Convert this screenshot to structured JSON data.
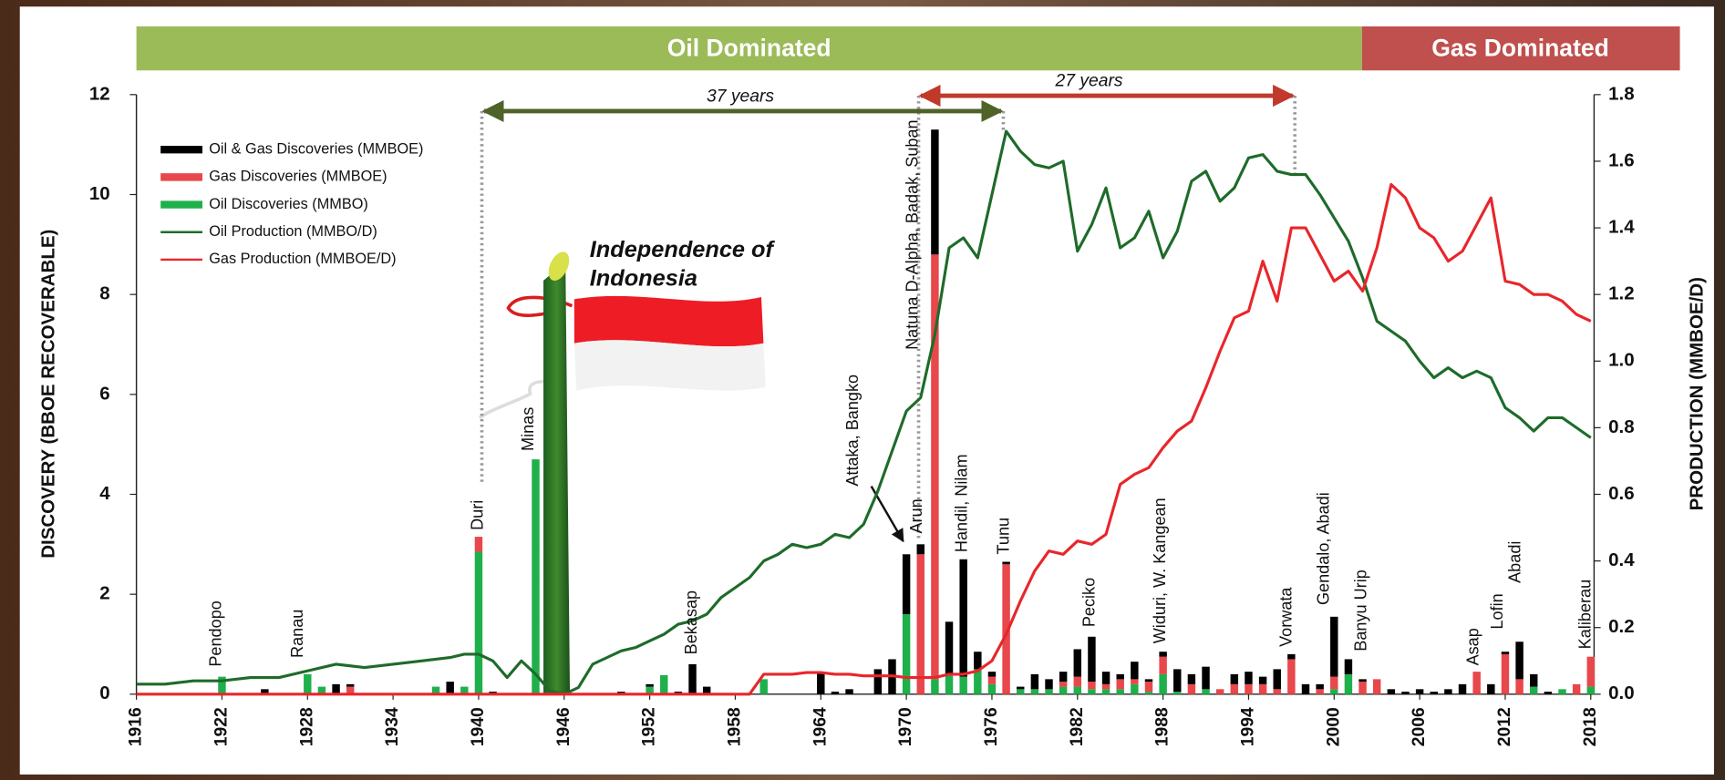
{
  "banners": [
    "Oil Dominated",
    "Gas Dominated"
  ],
  "periods": [
    "37 years",
    "27 years"
  ],
  "headline": [
    "Independence  of",
    "Indonesia"
  ],
  "chart_data": [
    {
      "type": "bar",
      "ylabel": "DISCOVERY (BBOE RECOVERABLE)",
      "xlim": [
        1916,
        2018
      ],
      "xticks": [
        1916,
        1922,
        1928,
        1934,
        1940,
        1946,
        1952,
        1958,
        1964,
        1970,
        1976,
        1982,
        1988,
        1994,
        2000,
        2006,
        2012,
        2018
      ],
      "ylim": [
        0,
        12
      ],
      "yticks": [
        0,
        2,
        4,
        6,
        8,
        10,
        12
      ],
      "annotations": [
        "Pendopo",
        "Ranau",
        "Duri",
        "Minas",
        "Bekasap",
        "Attaka, Bangko",
        "Arun",
        "Natuna D-Alpha, Badak, Suban",
        "Handil, Nilam",
        "Tunu",
        "Peciko",
        "Widuri, W. Kangean",
        "Vorwata",
        "Gendalo, Abadi",
        "Banyu Urip",
        "Asap",
        "Lofin",
        "Abadi",
        "Kaliberau"
      ],
      "x": [
        1922,
        1925,
        1928,
        1929,
        1930,
        1931,
        1937,
        1938,
        1939,
        1940,
        1941,
        1944,
        1950,
        1952,
        1953,
        1954,
        1955,
        1956,
        1960,
        1964,
        1965,
        1966,
        1968,
        1969,
        1970,
        1971,
        1972,
        1973,
        1974,
        1975,
        1976,
        1977,
        1978,
        1979,
        1980,
        1981,
        1982,
        1983,
        1984,
        1985,
        1986,
        1987,
        1988,
        1989,
        1990,
        1991,
        1992,
        1993,
        1994,
        1995,
        1996,
        1997,
        1998,
        1999,
        2000,
        2001,
        2002,
        2003,
        2004,
        2005,
        2006,
        2007,
        2008,
        2009,
        2010,
        2011,
        2012,
        2013,
        2014,
        2015,
        2016,
        2017,
        2018
      ],
      "series": [
        {
          "name": "Oil Discoveries (MMBO)",
          "color": "#1fb04c",
          "values": [
            0.35,
            0,
            0.4,
            0.15,
            0,
            0,
            0.15,
            0,
            0.15,
            2.85,
            0,
            4.7,
            0,
            0.15,
            0.38,
            0,
            0,
            0,
            0.3,
            0,
            0,
            0,
            0,
            0,
            1.6,
            0,
            0.3,
            0.4,
            0.35,
            0.5,
            0.2,
            0,
            0.1,
            0.1,
            0.1,
            0.15,
            0.15,
            0.1,
            0.1,
            0.1,
            0.2,
            0.05,
            0.4,
            0.05,
            0,
            0.1,
            0,
            0,
            0,
            0,
            0,
            0,
            0,
            0,
            0.1,
            0.4,
            0,
            0,
            0,
            0,
            0,
            0,
            0,
            0,
            0,
            0,
            0,
            0,
            0.15,
            0,
            0.1,
            0,
            0.15
          ]
        },
        {
          "name": "Gas Discoveries (MMBOE)",
          "color": "#e8474b",
          "values": [
            0,
            0,
            0,
            0,
            0,
            0.15,
            0,
            0,
            0,
            0.3,
            0,
            0,
            0,
            0,
            0,
            0,
            0,
            0,
            0,
            0,
            0,
            0,
            0,
            0,
            0,
            2.8,
            8.5,
            0,
            0,
            0,
            0.15,
            2.6,
            0,
            0,
            0,
            0.1,
            0.2,
            0.15,
            0.1,
            0.2,
            0.1,
            0.2,
            0.35,
            0,
            0.2,
            0,
            0.1,
            0.2,
            0.2,
            0.2,
            0.1,
            0.7,
            0,
            0.1,
            0.25,
            0,
            0.25,
            0.3,
            0,
            0,
            0,
            0,
            0,
            0,
            0.45,
            0,
            0.8,
            0.3,
            0,
            0,
            0,
            0.2,
            0.6
          ]
        },
        {
          "name": "Oil & Gas Discoveries (MMBOE)",
          "color": "#000000",
          "values": [
            0,
            0.1,
            0,
            0,
            0.2,
            0.05,
            0,
            0.25,
            0,
            0,
            0.05,
            0,
            0.05,
            0.05,
            0,
            0.05,
            0.6,
            0.15,
            0,
            0.45,
            0.05,
            0.1,
            0.5,
            0.7,
            1.2,
            0.2,
            2.5,
            1.05,
            2.35,
            0.35,
            0.1,
            0.05,
            0.05,
            0.3,
            0.2,
            0.2,
            0.55,
            0.9,
            0.25,
            0.1,
            0.35,
            0.05,
            0.1,
            0.45,
            0.2,
            0.45,
            0,
            0.2,
            0.25,
            0.15,
            0.4,
            0.1,
            0.2,
            0.1,
            1.2,
            0.3,
            0.05,
            0,
            0.1,
            0.05,
            0.1,
            0.05,
            0.1,
            0.2,
            0,
            0.2,
            0.05,
            0.75,
            0.25,
            0.05,
            0,
            0,
            0
          ]
        }
      ]
    },
    {
      "type": "line",
      "y2label": "PRODUCTION (MMBOE/D)",
      "xlim": [
        1916,
        2018
      ],
      "y2lim": [
        0,
        1.8
      ],
      "y2ticks": [
        {
          "value": 0,
          "label": "0.0"
        },
        0.2,
        0.4,
        0.6,
        0.8,
        {
          "value": 1,
          "label": "1.0"
        },
        1.2,
        1.4,
        1.6,
        1.8
      ],
      "x": [
        1916,
        1918,
        1920,
        1922,
        1924,
        1926,
        1928,
        1930,
        1932,
        1934,
        1936,
        1938,
        1939,
        1940,
        1941,
        1942,
        1943,
        1944,
        1945,
        1946,
        1947,
        1948,
        1949,
        1950,
        1951,
        1952,
        1953,
        1954,
        1955,
        1956,
        1957,
        1958,
        1959,
        1960,
        1961,
        1962,
        1963,
        1964,
        1965,
        1966,
        1967,
        1968,
        1969,
        1970,
        1971,
        1972,
        1973,
        1974,
        1975,
        1976,
        1977,
        1978,
        1979,
        1980,
        1981,
        1982,
        1983,
        1984,
        1985,
        1986,
        1987,
        1988,
        1989,
        1990,
        1991,
        1992,
        1993,
        1994,
        1995,
        1996,
        1997,
        1998,
        1999,
        2000,
        2001,
        2002,
        2003,
        2004,
        2005,
        2006,
        2007,
        2008,
        2009,
        2010,
        2011,
        2012,
        2013,
        2014,
        2015,
        2016,
        2017,
        2018
      ],
      "series": [
        {
          "name": "Oil Production (MMBO/D)",
          "color": "#1e6b2a",
          "axis": "y2",
          "values": [
            0.03,
            0.03,
            0.04,
            0.04,
            0.05,
            0.05,
            0.07,
            0.09,
            0.08,
            0.09,
            0.1,
            0.11,
            0.12,
            0.12,
            0.1,
            0.05,
            0.1,
            0.06,
            0.01,
            0,
            0.02,
            0.09,
            0.11,
            0.13,
            0.14,
            0.16,
            0.18,
            0.21,
            0.22,
            0.24,
            0.29,
            0.32,
            0.35,
            0.4,
            0.42,
            0.45,
            0.44,
            0.45,
            0.48,
            0.47,
            0.51,
            0.61,
            0.73,
            0.85,
            0.89,
            1.08,
            1.34,
            1.37,
            1.31,
            1.5,
            1.69,
            1.63,
            1.59,
            1.58,
            1.6,
            1.33,
            1.41,
            1.52,
            1.34,
            1.37,
            1.45,
            1.31,
            1.39,
            1.54,
            1.57,
            1.48,
            1.52,
            1.61,
            1.62,
            1.57,
            1.56,
            1.56,
            1.5,
            1.43,
            1.36,
            1.25,
            1.12,
            1.09,
            1.06,
            1,
            0.95,
            0.98,
            0.95,
            0.97,
            0.95,
            0.86,
            0.83,
            0.79,
            0.83,
            0.83,
            0.8,
            0.77
          ]
        },
        {
          "name": "Gas Production (MMBOE/D)",
          "color": "#e8262b",
          "axis": "y2",
          "values": [
            0,
            0,
            0,
            0,
            0,
            0,
            0,
            0,
            0,
            0,
            0,
            0,
            0,
            0,
            0,
            0,
            0,
            0,
            0,
            0,
            0,
            0,
            0,
            0,
            0,
            0,
            0,
            0,
            0,
            0,
            0,
            0,
            0,
            0.06,
            0.06,
            0.06,
            0.065,
            0.065,
            0.06,
            0.06,
            0.055,
            0.055,
            0.055,
            0.05,
            0.05,
            0.05,
            0.06,
            0.06,
            0.07,
            0.1,
            0.18,
            0.28,
            0.37,
            0.43,
            0.42,
            0.46,
            0.45,
            0.48,
            0.63,
            0.66,
            0.68,
            0.74,
            0.79,
            0.82,
            0.92,
            1.03,
            1.13,
            1.15,
            1.3,
            1.18,
            1.4,
            1.4,
            1.32,
            1.24,
            1.27,
            1.21,
            1.34,
            1.53,
            1.49,
            1.4,
            1.37,
            1.3,
            1.33,
            1.41,
            1.49,
            1.24,
            1.23,
            1.2,
            1.2,
            1.18,
            1.14,
            1.12
          ]
        }
      ]
    }
  ]
}
